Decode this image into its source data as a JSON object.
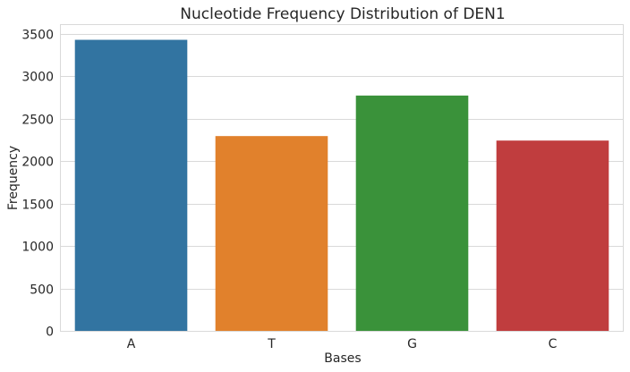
{
  "chart_data": {
    "type": "bar",
    "title": "Nucleotide Frequency Distribution of DEN1",
    "xlabel": "Bases",
    "ylabel": "Frequency",
    "categories": [
      "A",
      "T",
      "G",
      "C"
    ],
    "values": [
      3426,
      2293,
      2770,
      2240
    ],
    "colors": [
      "#3274a1",
      "#e1812c",
      "#3a923a",
      "#c03d3e"
    ],
    "ylim": [
      0,
      3600
    ],
    "yticks": [
      0,
      500,
      1000,
      1500,
      2000,
      2500,
      3000,
      3500
    ],
    "grid": true,
    "legend": false
  }
}
